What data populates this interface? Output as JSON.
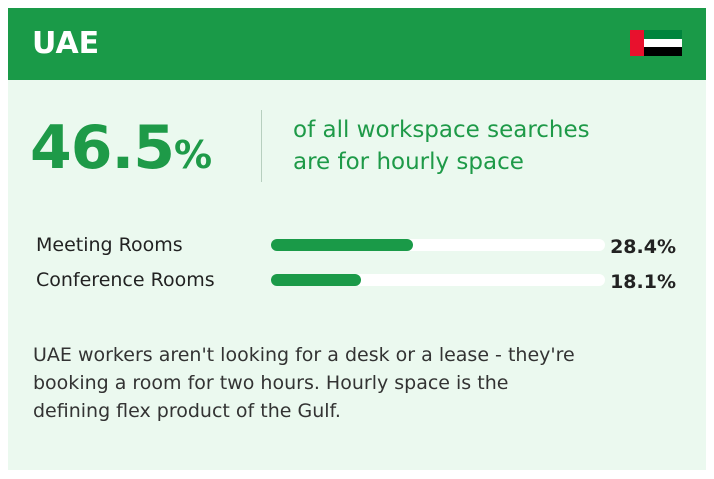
{
  "header": {
    "title": "UAE"
  },
  "headline": {
    "value": "46.5",
    "unit": "%",
    "lines": [
      "of all workspace searches",
      "are for hourly space"
    ]
  },
  "breakdown": {
    "xlim": [
      0,
      67
    ],
    "rows": [
      {
        "label": "Meeting Rooms",
        "value": 28.4,
        "value_label": "28.4%"
      },
      {
        "label": "Conference Rooms",
        "value": 18.1,
        "value_label": "18.1%"
      }
    ]
  },
  "body": {
    "lines": [
      "UAE workers aren't looking for a desk or a lease - they're",
      "booking a room for two hours. Hourly space is the",
      "defining flex product of the Gulf."
    ]
  }
}
